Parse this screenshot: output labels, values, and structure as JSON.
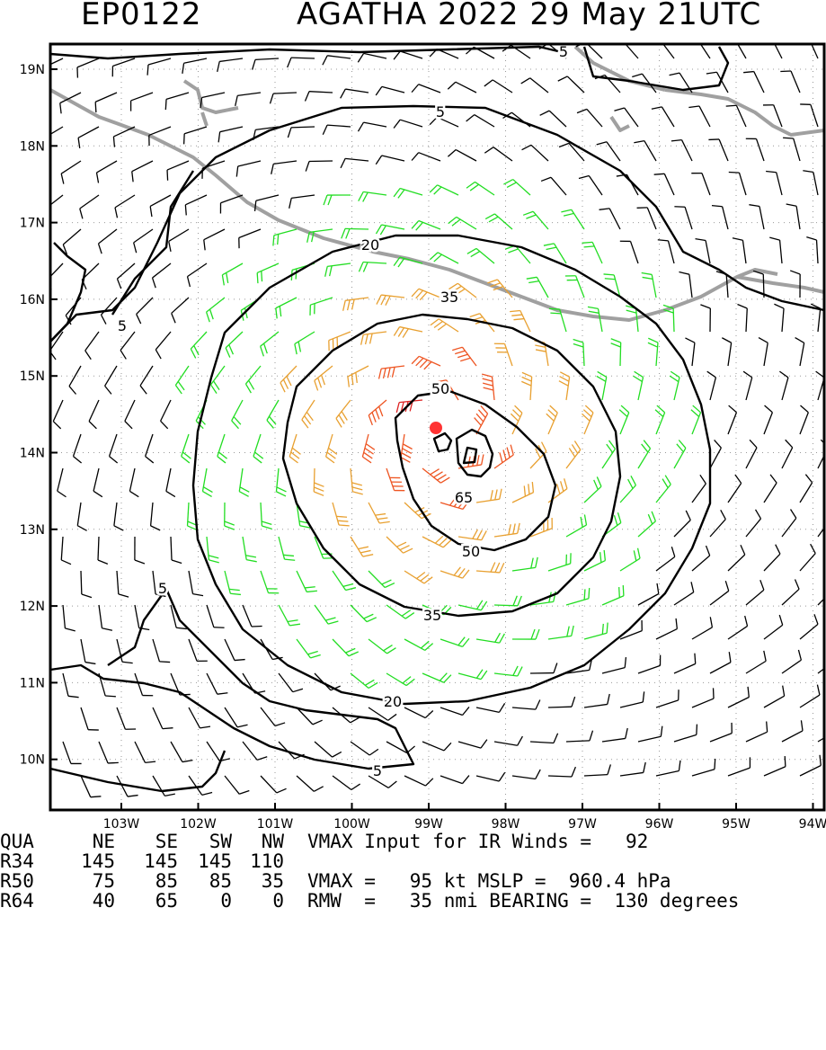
{
  "title": {
    "storm_id": "EP0122",
    "storm_info": "AGATHA 2022 29 May 21UTC"
  },
  "map": {
    "lat_labels": [
      "19N",
      "18N",
      "17N",
      "16N",
      "15N",
      "14N",
      "13N",
      "12N",
      "11N",
      "10N"
    ],
    "lon_labels": [
      "103W",
      "102W",
      "101W",
      "100W",
      "99W",
      "98W",
      "97W",
      "96W",
      "95W",
      "94W"
    ],
    "contour_labels": [
      "5",
      "5",
      "5",
      "5",
      "5",
      "20",
      "20",
      "35",
      "35",
      "50",
      "50",
      "65"
    ],
    "storm_center_color": "#ff3333",
    "barb_colors": {
      "calm": "#000000",
      "34kt": "#22dd22",
      "50kt": "#e8a030",
      "64kt": "#ee5522",
      "core": "#dd2222"
    },
    "coastline_color": "#a0a0a0"
  },
  "stats": {
    "header": {
      "label": "QUA",
      "ne": "NE",
      "se": "SE",
      "sw": "SW",
      "nw": "NW"
    },
    "rows": [
      {
        "label": "R34",
        "ne": "145",
        "se": "145",
        "sw": "145",
        "nw": "110"
      },
      {
        "label": "R50",
        "ne": "75",
        "se": "85",
        "sw": "85",
        "nw": "35"
      },
      {
        "label": "R64",
        "ne": "40",
        "se": "65",
        "sw": "0",
        "nw": "0"
      }
    ],
    "line1": "VMAX Input for IR Winds =   92",
    "line3": "VMAX =   95 kt MSLP =  960.4 hPa",
    "line4": "RMW  =   35 nmi BEARING =  130 degrees"
  }
}
